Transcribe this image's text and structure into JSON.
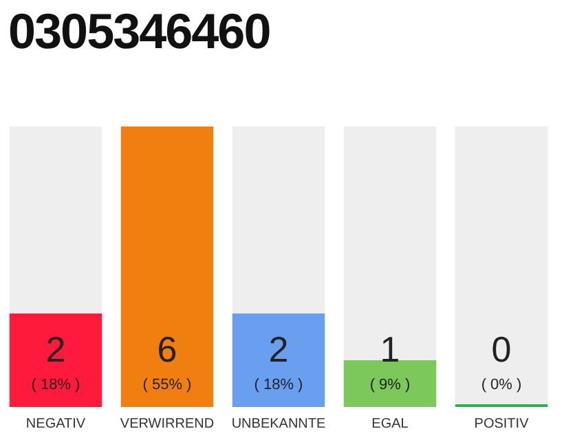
{
  "chart_data": {
    "type": "bar",
    "title": "0305346460",
    "categories": [
      "NEGATIV",
      "VERWIRREND",
      "UNBEKANNTE",
      "EGAL",
      "POSITIV"
    ],
    "values": [
      2,
      6,
      2,
      1,
      0
    ],
    "colors": [
      "#ff1a3c",
      "#f07f0f",
      "#6a9ff0",
      "#7cc85a",
      "#2bb24c"
    ],
    "value_labels": [
      "2 ( 18% )",
      "6 ( 55% )",
      "2 ( 18% )",
      "1 ( 9% )",
      "0 ( 0% )"
    ],
    "ylim": [
      0,
      6
    ],
    "tick_labels": "x",
    "grid": false,
    "legend": false
  }
}
